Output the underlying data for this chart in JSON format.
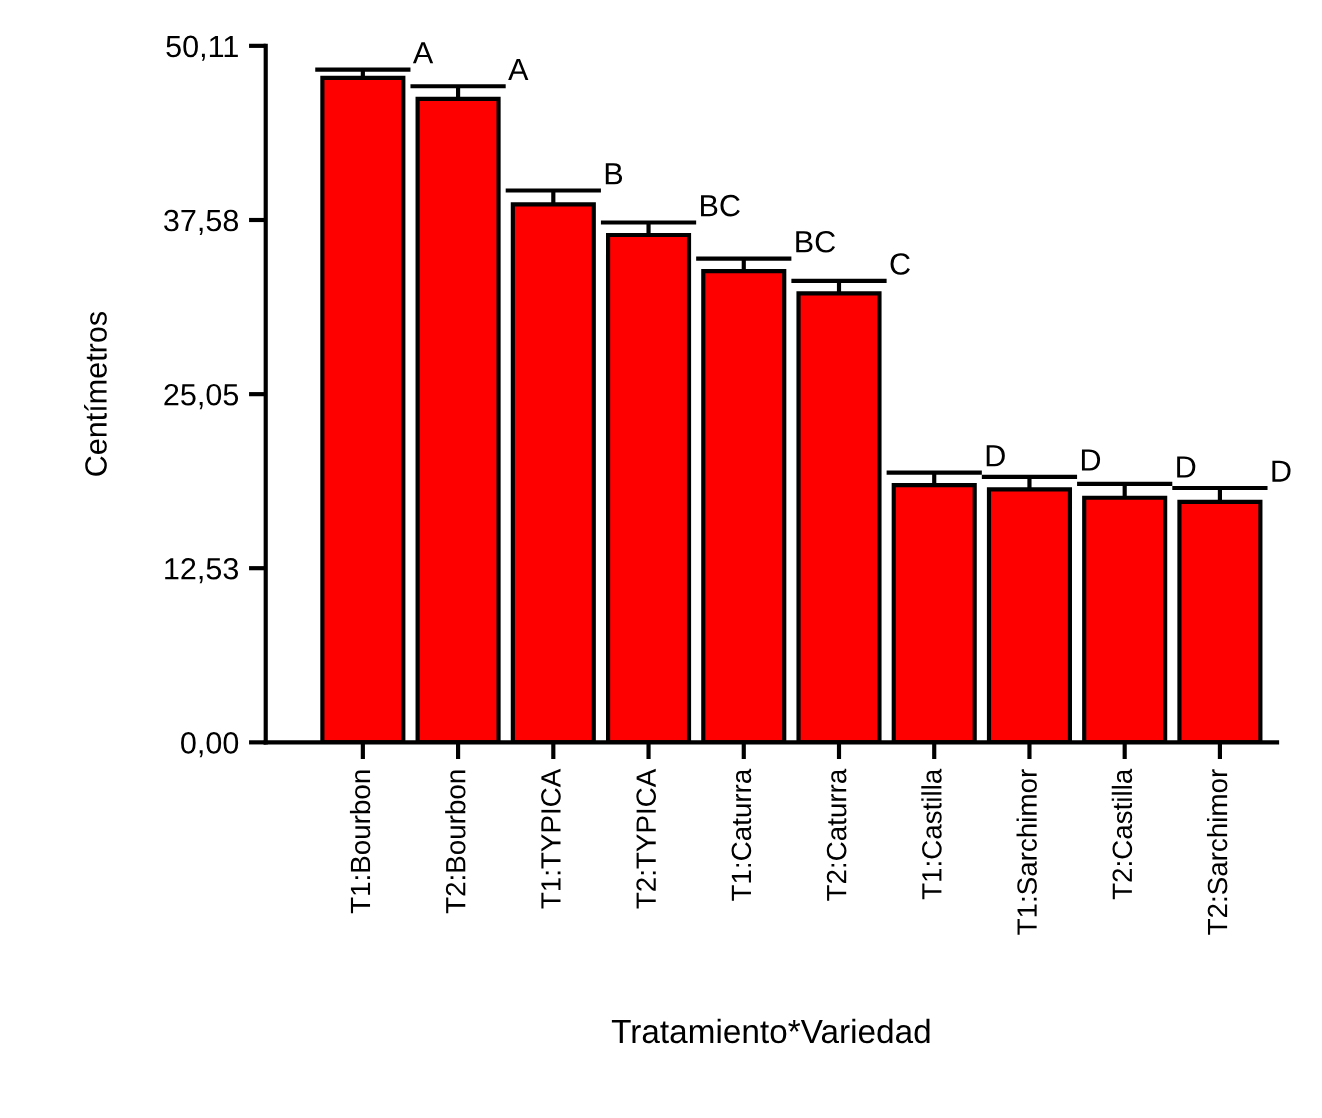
{
  "chart_data": {
    "type": "bar",
    "categories": [
      "T1:Bourbon",
      "T2:Bourbon",
      "T1:TYPICA",
      "T2:TYPICA",
      "T1:Caturra",
      "T2:Caturra",
      "T1:Castilla",
      "T1:Sarchimor",
      "T2:Castilla",
      "T2:Sarchimor"
    ],
    "values": [
      47.8,
      46.3,
      38.7,
      36.5,
      33.9,
      32.3,
      18.5,
      18.2,
      17.6,
      17.3
    ],
    "errors": [
      [
        47.8,
        48.4
      ],
      [
        46.3,
        47.2
      ],
      [
        38.7,
        39.7
      ],
      [
        36.5,
        37.4
      ],
      [
        33.9,
        34.8
      ],
      [
        32.3,
        33.2
      ],
      [
        18.5,
        19.4
      ],
      [
        18.2,
        19.1
      ],
      [
        17.6,
        18.6
      ],
      [
        17.3,
        18.3
      ]
    ],
    "color": "#ff0000",
    "xlabel": "Tratamiento*Variedad",
    "ylabel": "Centímetros",
    "ylim": [
      0,
      50.11
    ],
    "yticks": [
      {
        "value": 0,
        "label": "0,00"
      },
      {
        "value": 12.53,
        "label": "12,53"
      },
      {
        "value": 25.05,
        "label": "25,05"
      },
      {
        "value": 37.58,
        "label": "37,58"
      },
      {
        "value": 50.11,
        "label": "50,11"
      }
    ],
    "grid": false,
    "legend": false,
    "annotations": [
      {
        "text": "A",
        "x": "T1:Bourbon",
        "y": 48.4
      },
      {
        "text": "A",
        "x": "T2:Bourbon",
        "y": 47.2
      },
      {
        "text": "B",
        "x": "T1:TYPICA",
        "y": 39.7
      },
      {
        "text": "BC",
        "x": "T2:TYPICA",
        "y": 37.4
      },
      {
        "text": "BC",
        "x": "T1:Caturra",
        "y": 34.8
      },
      {
        "text": "C",
        "x": "T2:Caturra",
        "y": 33.2
      },
      {
        "text": "D",
        "x": "T1:Castilla",
        "y": 19.4
      },
      {
        "text": "D",
        "x": "T1:Sarchimor",
        "y": 19.1
      },
      {
        "text": "D",
        "x": "T2:Castilla",
        "y": 18.6
      },
      {
        "text": "D",
        "x": "T2:Sarchimor",
        "y": 18.3
      }
    ]
  }
}
